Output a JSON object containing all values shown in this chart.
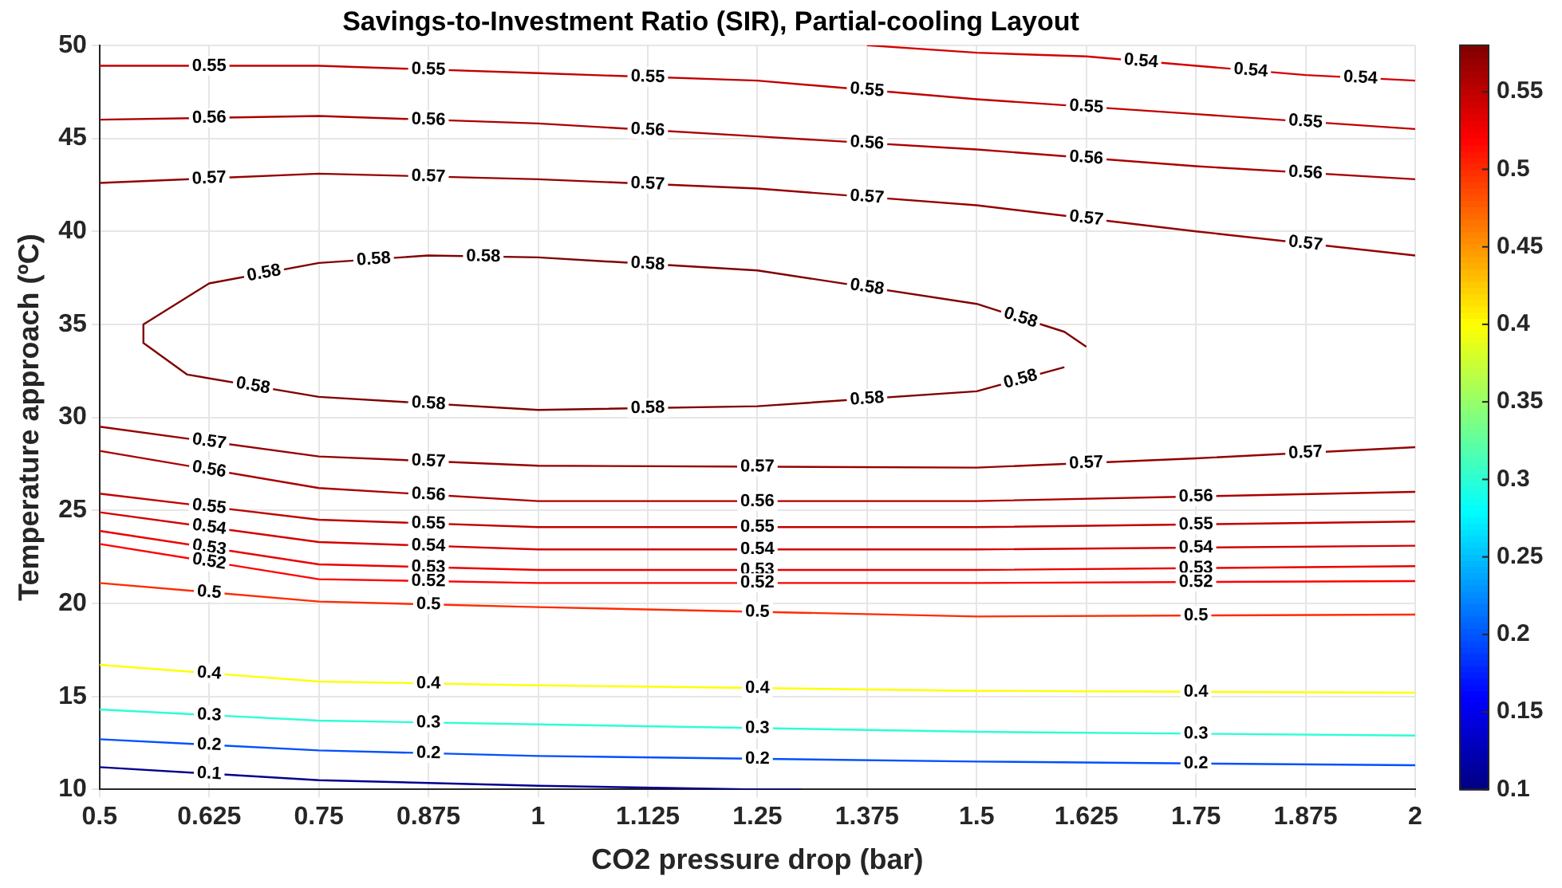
{
  "chart_data": {
    "type": "line",
    "title": "Savings-to-Investment Ratio (SIR), Partial-cooling Layout",
    "xlabel": "CO2 pressure drop (bar)",
    "ylabel": "Temperature approach (ºC)",
    "xlim": [
      0.5,
      2
    ],
    "xticks": [
      0.5,
      0.625,
      0.75,
      0.875,
      1,
      1.125,
      1.25,
      1.375,
      1.5,
      1.625,
      1.75,
      1.875,
      2
    ],
    "ylim": [
      10,
      50
    ],
    "yticks": [
      10,
      15,
      20,
      25,
      30,
      35,
      40,
      45,
      50
    ],
    "clim": [
      0.1,
      0.58
    ],
    "cticks": [
      0.1,
      0.15,
      0.2,
      0.25,
      0.3,
      0.35,
      0.4,
      0.45,
      0.5,
      0.55
    ],
    "grid": true,
    "legend": false,
    "marker": "none",
    "line_style": "solid",
    "series": [
      {
        "name": "0.54",
        "color": "#d40000",
        "x": [
          1.375,
          1.5,
          1.625,
          1.75,
          1.875,
          2
        ],
        "values": [
          50,
          49.6,
          49.4,
          48.9,
          48.4,
          48.1
        ]
      },
      {
        "name": "0.55",
        "color": "#c00000",
        "x": [
          0.5,
          0.75,
          1,
          1.25,
          1.5,
          1.75,
          2
        ],
        "values": [
          48.9,
          48.9,
          48.5,
          48.1,
          47.1,
          46.3,
          45.5
        ]
      },
      {
        "name": "0.56",
        "color": "#aa0000",
        "x": [
          0.5,
          0.75,
          1,
          1.25,
          1.5,
          1.75,
          2
        ],
        "values": [
          46.0,
          46.2,
          45.8,
          45.1,
          44.4,
          43.5,
          42.8
        ]
      },
      {
        "name": "0.57",
        "color": "#950000",
        "x": [
          0.5,
          0.75,
          1,
          1.25,
          1.5,
          1.75,
          2
        ],
        "values": [
          42.6,
          43.1,
          42.8,
          42.3,
          41.4,
          40.0,
          38.7
        ]
      },
      {
        "name": "0.58",
        "color": "#800000",
        "x": [
          0.55,
          0.625,
          0.75,
          0.875,
          1,
          1.25,
          1.5,
          1.6,
          1.625
        ],
        "values": [
          35.0,
          37.2,
          38.3,
          38.7,
          38.6,
          37.9,
          36.1,
          34.6,
          33.8
        ]
      },
      {
        "name": "0.58",
        "color": "#800000",
        "x": [
          0.55,
          0.55,
          0.6,
          0.75,
          1,
          1.25,
          1.5,
          1.6
        ],
        "values": [
          35.0,
          34.0,
          32.3,
          31.1,
          30.4,
          30.6,
          31.4,
          32.7
        ]
      },
      {
        "name": "0.57",
        "color": "#950000",
        "x": [
          0.5,
          0.75,
          1,
          1.5,
          1.75,
          2
        ],
        "values": [
          29.5,
          27.9,
          27.4,
          27.3,
          27.8,
          28.4
        ]
      },
      {
        "name": "0.56",
        "color": "#aa0000",
        "x": [
          0.5,
          0.75,
          1,
          1.5,
          2
        ],
        "values": [
          28.2,
          26.2,
          25.5,
          25.5,
          26.0
        ]
      },
      {
        "name": "0.55",
        "color": "#c00000",
        "x": [
          0.5,
          0.75,
          1,
          1.5,
          2
        ],
        "values": [
          25.9,
          24.5,
          24.1,
          24.1,
          24.4
        ]
      },
      {
        "name": "0.54",
        "color": "#d40000",
        "x": [
          0.5,
          0.75,
          1,
          1.5,
          2
        ],
        "values": [
          24.9,
          23.3,
          22.9,
          22.9,
          23.1
        ]
      },
      {
        "name": "0.53",
        "color": "#eb0000",
        "x": [
          0.5,
          0.75,
          1,
          1.5,
          2
        ],
        "values": [
          23.9,
          22.1,
          21.8,
          21.8,
          22.0
        ]
      },
      {
        "name": "0.52",
        "color": "#ff0000",
        "x": [
          0.5,
          0.75,
          1,
          1.5,
          2
        ],
        "values": [
          23.2,
          21.3,
          21.1,
          21.1,
          21.2
        ]
      },
      {
        "name": "0.5",
        "color": "#ff2b00",
        "x": [
          0.5,
          0.75,
          1,
          1.5,
          2
        ],
        "values": [
          21.1,
          20.1,
          19.8,
          19.3,
          19.4
        ]
      },
      {
        "name": "0.4",
        "color": "#ffff00",
        "x": [
          0.5,
          0.75,
          1,
          1.5,
          2
        ],
        "values": [
          16.7,
          15.8,
          15.6,
          15.3,
          15.2
        ]
      },
      {
        "name": "0.3",
        "color": "#2bffd4",
        "x": [
          0.5,
          0.75,
          1,
          1.5,
          2
        ],
        "values": [
          14.3,
          13.7,
          13.5,
          13.1,
          12.9
        ]
      },
      {
        "name": "0.2",
        "color": "#0050ff",
        "x": [
          0.5,
          0.75,
          1,
          1.5,
          2
        ],
        "values": [
          12.7,
          12.1,
          11.8,
          11.5,
          11.3
        ]
      },
      {
        "name": "0.1",
        "color": "#00008f",
        "x": [
          0.5,
          0.75,
          1,
          1.25,
          1.3
        ],
        "values": [
          11.2,
          10.5,
          10.2,
          10.0,
          10.0
        ]
      }
    ]
  }
}
